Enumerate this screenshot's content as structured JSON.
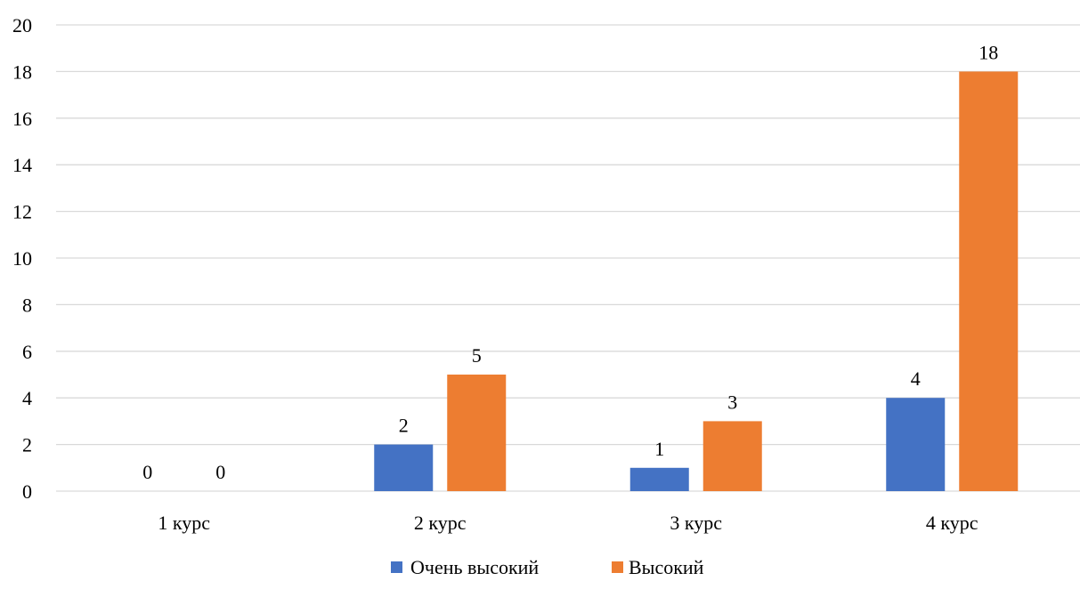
{
  "chart_data": {
    "type": "bar",
    "title": "",
    "xlabel": "",
    "ylabel": "",
    "categories": [
      "1 курс",
      "2 курс",
      "3 курс",
      "4 курс"
    ],
    "series": [
      {
        "name": "Очень высокий",
        "values": [
          0,
          2,
          1,
          4
        ],
        "color": "#4472c4"
      },
      {
        "name": "Высокий",
        "values": [
          0,
          5,
          3,
          18
        ],
        "color": "#ed7d31"
      }
    ],
    "ylim": [
      0,
      20
    ],
    "yticks": [
      0,
      2,
      4,
      6,
      8,
      10,
      12,
      14,
      16,
      18,
      20
    ],
    "grid": true,
    "gridColor": "#d9d9d9",
    "legend": "bottom"
  }
}
